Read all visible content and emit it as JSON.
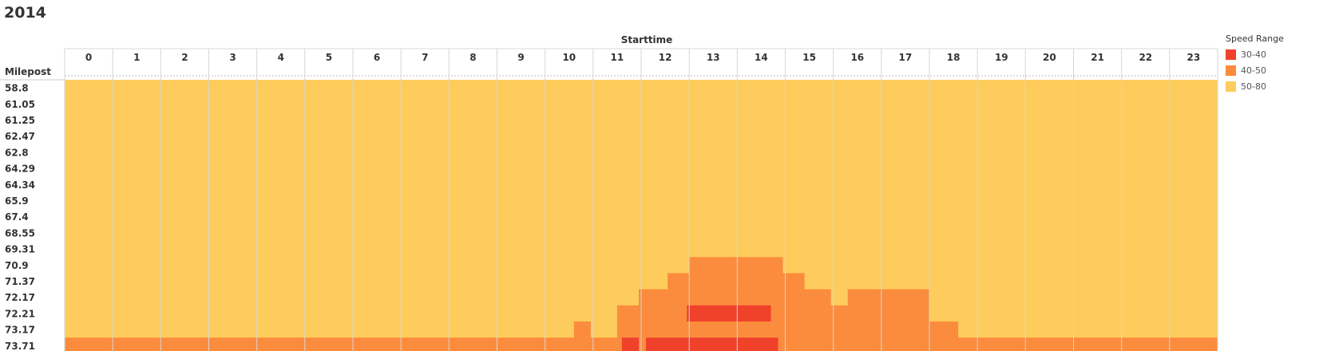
{
  "page": {
    "title": "2014"
  },
  "chart_data": {
    "type": "heatmap",
    "title": "2014",
    "xlabel": "Starttime",
    "ylabel": "Milepost",
    "x": [
      "0",
      "1",
      "2",
      "3",
      "4",
      "5",
      "6",
      "7",
      "8",
      "9",
      "10",
      "11",
      "12",
      "13",
      "14",
      "15",
      "16",
      "17",
      "18",
      "19",
      "20",
      "21",
      "22",
      "23"
    ],
    "y": [
      "58.8",
      "61.05",
      "61.25",
      "62.47",
      "62.8",
      "64.29",
      "64.34",
      "65.9",
      "67.4",
      "68.55",
      "69.31",
      "70.9",
      "71.37",
      "72.17",
      "72.21",
      "73.17",
      "73.71"
    ],
    "legend": {
      "title": "Speed Range",
      "position": "top-right",
      "entries": [
        {
          "label": "30-40",
          "color": "#f0412a"
        },
        {
          "label": "40-50",
          "color": "#fb8c3e"
        },
        {
          "label": "50-80",
          "color": "#fdcc5c"
        }
      ]
    },
    "default_range": "50-80",
    "regions": [
      {
        "milepost": "70.9",
        "range": "40-50",
        "start": 13.0,
        "end": 14.95
      },
      {
        "milepost": "71.37",
        "range": "40-50",
        "start": 12.55,
        "end": 15.4
      },
      {
        "milepost": "72.17",
        "range": "40-50",
        "start": 11.95,
        "end": 15.95
      },
      {
        "milepost": "72.17",
        "range": "40-50",
        "start": 16.3,
        "end": 18.0
      },
      {
        "milepost": "72.21",
        "range": "40-50",
        "start": 11.5,
        "end": 18.0
      },
      {
        "milepost": "72.21",
        "range": "30-40",
        "start": 12.95,
        "end": 14.7
      },
      {
        "milepost": "73.17",
        "range": "40-50",
        "start": 10.6,
        "end": 10.95
      },
      {
        "milepost": "73.17",
        "range": "40-50",
        "start": 11.5,
        "end": 18.6
      },
      {
        "milepost": "73.71",
        "range": "40-50",
        "start": 0.0,
        "end": 24.0
      },
      {
        "milepost": "73.71",
        "range": "30-40",
        "start": 11.6,
        "end": 11.95
      },
      {
        "milepost": "73.71",
        "range": "30-40",
        "start": 12.1,
        "end": 14.85
      }
    ]
  }
}
